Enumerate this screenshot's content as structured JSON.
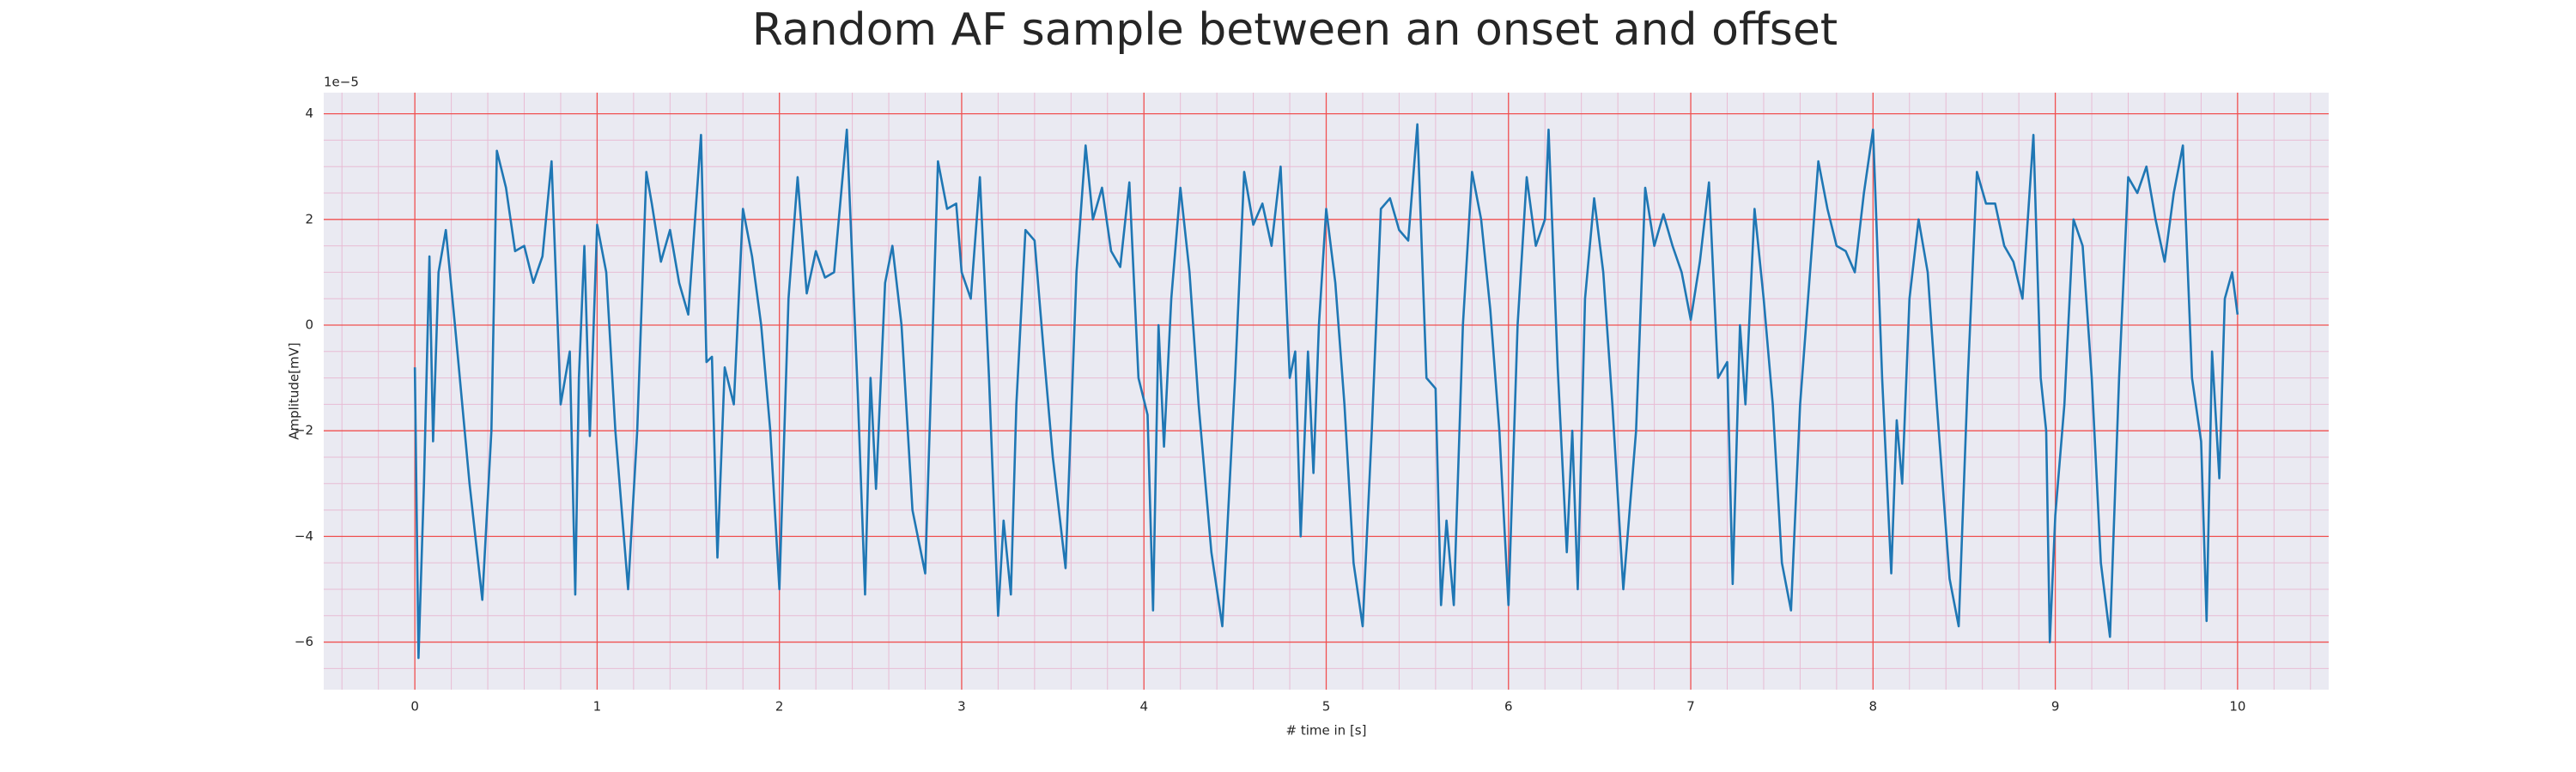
{
  "chart_data": {
    "type": "line",
    "title": "Random AF sample between an onset and offset",
    "x_label": "# time in [s]",
    "y_label": "Amplitude[mV]",
    "y_offset_label": "1e−5",
    "xlim": [
      -0.5,
      10.5
    ],
    "ylim": [
      -6.9,
      4.4
    ],
    "xticks": [
      0,
      1,
      2,
      3,
      4,
      5,
      6,
      7,
      8,
      9,
      10
    ],
    "yticks": [
      {
        "value": -6,
        "label": "−6"
      },
      {
        "value": -4,
        "label": "−4"
      },
      {
        "value": -2,
        "label": "−2"
      },
      0,
      2,
      4
    ],
    "grid": true,
    "minor_grid": true,
    "grid_color": "#f05050",
    "minor_grid_color": "#e8bcd4",
    "background": "#eaeaf2",
    "series": [
      {
        "color": "#1f77b4",
        "x": [
          0,
          0.02,
          0.05,
          0.08,
          0.1,
          0.13,
          0.17,
          0.22,
          0.3,
          0.37,
          0.42,
          0.45,
          0.5,
          0.55,
          0.6,
          0.65,
          0.7,
          0.75,
          0.8,
          0.85,
          0.88,
          0.9,
          0.93,
          0.96,
          1.0,
          1.05,
          1.1,
          1.17,
          1.22,
          1.27,
          1.3,
          1.35,
          1.4,
          1.45,
          1.5,
          1.57,
          1.6,
          1.63,
          1.66,
          1.7,
          1.75,
          1.8,
          1.85,
          1.9,
          1.95,
          2.0,
          2.05,
          2.1,
          2.15,
          2.2,
          2.25,
          2.3,
          2.37,
          2.43,
          2.47,
          2.5,
          2.53,
          2.58,
          2.62,
          2.67,
          2.73,
          2.8,
          2.87,
          2.92,
          2.97,
          3.0,
          3.05,
          3.1,
          3.15,
          3.2,
          3.23,
          3.27,
          3.3,
          3.35,
          3.4,
          3.45,
          3.5,
          3.57,
          3.63,
          3.68,
          3.72,
          3.77,
          3.82,
          3.87,
          3.92,
          3.97,
          4.02,
          4.05,
          4.08,
          4.11,
          4.15,
          4.2,
          4.25,
          4.3,
          4.37,
          4.43,
          4.5,
          4.55,
          4.6,
          4.65,
          4.7,
          4.75,
          4.8,
          4.83,
          4.86,
          4.9,
          4.93,
          4.96,
          5.0,
          5.05,
          5.1,
          5.15,
          5.2,
          5.25,
          5.3,
          5.35,
          5.4,
          5.45,
          5.5,
          5.55,
          5.6,
          5.63,
          5.66,
          5.7,
          5.75,
          5.8,
          5.85,
          5.9,
          5.95,
          6.0,
          6.05,
          6.1,
          6.15,
          6.2,
          6.22,
          6.27,
          6.32,
          6.35,
          6.38,
          6.42,
          6.47,
          6.52,
          6.57,
          6.63,
          6.7,
          6.75,
          6.8,
          6.85,
          6.9,
          6.95,
          7.0,
          7.05,
          7.1,
          7.15,
          7.2,
          7.23,
          7.27,
          7.3,
          7.35,
          7.4,
          7.45,
          7.5,
          7.55,
          7.6,
          7.7,
          7.75,
          7.8,
          7.85,
          7.9,
          7.95,
          8.0,
          8.05,
          8.1,
          8.13,
          8.16,
          8.2,
          8.25,
          8.3,
          8.35,
          8.42,
          8.47,
          8.52,
          8.57,
          8.62,
          8.67,
          8.72,
          8.77,
          8.82,
          8.88,
          8.92,
          8.95,
          8.97,
          9.0,
          9.05,
          9.1,
          9.15,
          9.2,
          9.25,
          9.3,
          9.35,
          9.4,
          9.45,
          9.5,
          9.55,
          9.6,
          9.65,
          9.7,
          9.75,
          9.8,
          9.83,
          9.86,
          9.9,
          9.93,
          9.97,
          10.0
        ],
        "values": [
          -0.8,
          -6.3,
          -3,
          1.3,
          -2.2,
          1,
          1.8,
          0,
          -3,
          -5.2,
          -2,
          3.3,
          2.6,
          1.4,
          1.5,
          0.8,
          1.3,
          3.1,
          -1.5,
          -0.5,
          -5.1,
          -1,
          1.5,
          -2.1,
          1.9,
          1,
          -2,
          -5,
          -2,
          2.9,
          2.3,
          1.2,
          1.8,
          0.8,
          0.2,
          3.6,
          -0.7,
          -0.6,
          -4.4,
          -0.8,
          -1.5,
          2.2,
          1.3,
          0,
          -2,
          -5,
          0.5,
          2.8,
          0.6,
          1.4,
          0.9,
          1,
          3.7,
          -1.3,
          -5.1,
          -1,
          -3.1,
          0.8,
          1.5,
          0,
          -3.5,
          -4.7,
          3.1,
          2.2,
          2.3,
          1,
          0.5,
          2.8,
          -1,
          -5.5,
          -3.7,
          -5.1,
          -1.5,
          1.8,
          1.6,
          -0.5,
          -2.5,
          -4.6,
          1,
          3.4,
          2,
          2.6,
          1.4,
          1.1,
          2.7,
          -1,
          -1.7,
          -5.4,
          0,
          -2.3,
          0.5,
          2.6,
          1,
          -1.5,
          -4.3,
          -5.7,
          -1,
          2.9,
          1.9,
          2.3,
          1.5,
          3,
          -1,
          -0.5,
          -4,
          -0.5,
          -2.8,
          0,
          2.2,
          0.8,
          -1.5,
          -4.5,
          -5.7,
          -2,
          2.2,
          2.4,
          1.8,
          1.6,
          3.8,
          -1,
          -1.2,
          -5.3,
          -3.7,
          -5.3,
          0,
          2.9,
          2,
          0.3,
          -2,
          -5.3,
          0,
          2.8,
          1.5,
          2,
          3.7,
          -0.8,
          -4.3,
          -2,
          -5,
          0.5,
          2.4,
          1,
          -1.5,
          -5,
          -2,
          2.6,
          1.5,
          2.1,
          1.5,
          1,
          0.1,
          1.2,
          2.7,
          -1,
          -0.7,
          -4.9,
          0,
          -1.5,
          2.2,
          0.5,
          -1.5,
          -4.5,
          -5.4,
          -1.5,
          3.1,
          2.2,
          1.5,
          1.4,
          1,
          2.5,
          3.7,
          -1,
          -4.7,
          -1.8,
          -3,
          0.5,
          2,
          1,
          -1.5,
          -4.8,
          -5.7,
          -1,
          2.9,
          2.3,
          2.3,
          1.5,
          1.2,
          0.5,
          3.6,
          -1,
          -2,
          -6,
          -3.6,
          -1.5,
          2,
          1.5,
          -1,
          -4.5,
          -5.9,
          -1,
          2.8,
          2.5,
          3,
          2,
          1.2,
          2.5,
          3.4,
          -1,
          -2.2,
          -5.6,
          -0.5,
          -2.9,
          0.5,
          1,
          0.2
        ]
      }
    ]
  }
}
